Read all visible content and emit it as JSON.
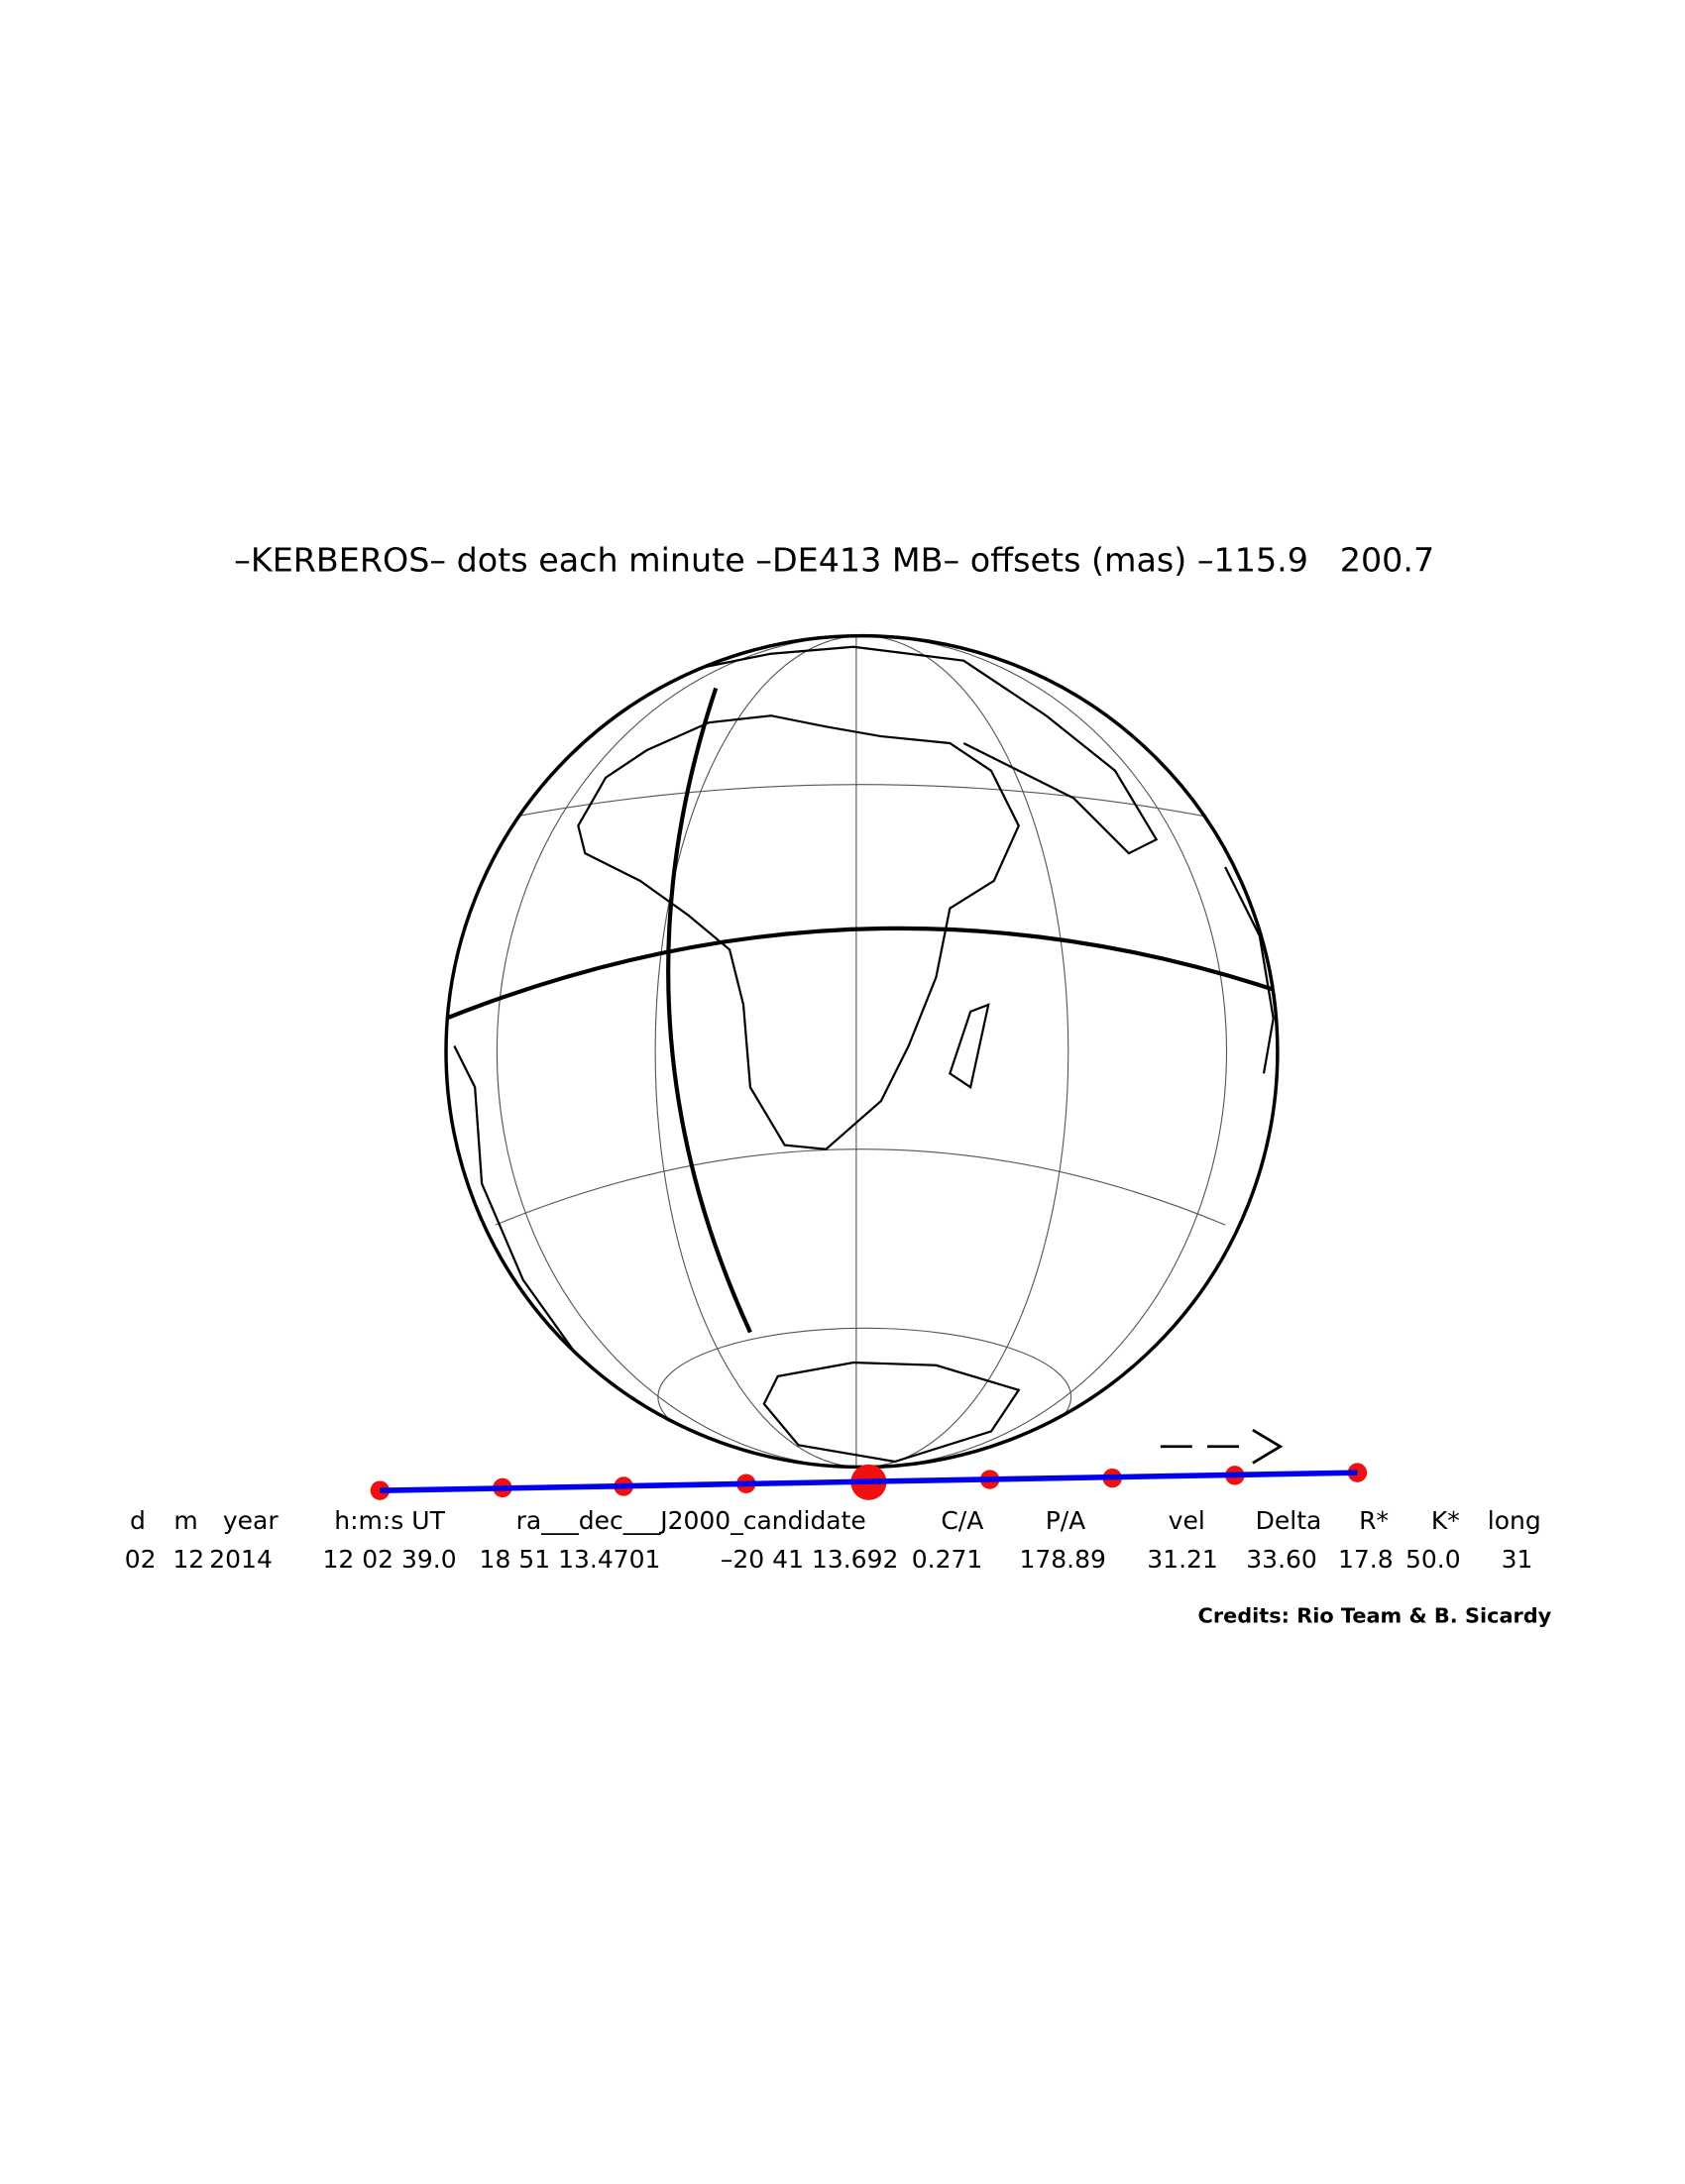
{
  "title": "–KERBEROS– dots each minute –DE413 MB– offsets (mas) –115.9   200.7",
  "table": {
    "header": [
      "d",
      "m",
      "year",
      "h:m:s UT",
      "ra___dec___J2000_candidate",
      "C/A",
      "P/A",
      "vel",
      "Delta",
      "R*",
      "K*",
      "long"
    ],
    "row": [
      "02",
      "12",
      "2014",
      "12 02 39.0",
      "18 51 13.4701",
      "–20 41 13.692",
      "0.271",
      "178.89",
      "31.21",
      "33.60",
      "17.8",
      "50.0",
      "31"
    ]
  },
  "credits": "Credits: Rio Team & B. Sicardy"
}
